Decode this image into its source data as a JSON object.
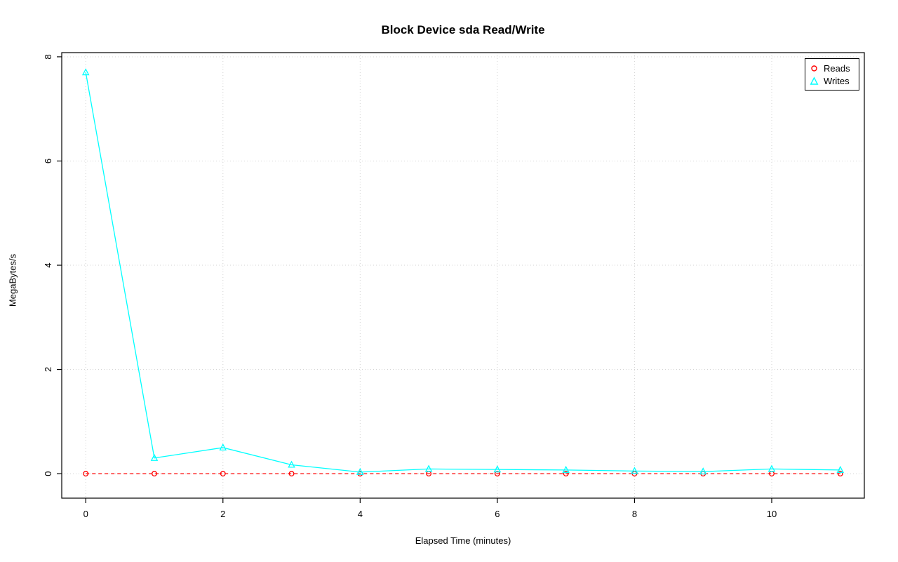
{
  "chart_data": {
    "type": "line",
    "title": "Block Device sda Read/Write",
    "xlabel": "Elapsed Time (minutes)",
    "ylabel": "MegaBytes/s",
    "x": [
      0,
      1,
      2,
      3,
      4,
      5,
      6,
      7,
      8,
      9,
      10,
      11
    ],
    "series": [
      {
        "name": "Reads",
        "color": "#ff0000",
        "marker": "circle",
        "line": "dashed",
        "values": [
          0,
          0,
          0,
          0,
          0,
          0,
          0,
          0,
          0,
          0,
          0,
          0
        ]
      },
      {
        "name": "Writes",
        "color": "#00ffff",
        "marker": "triangle",
        "line": "solid",
        "values": [
          7.7,
          0.3,
          0.5,
          0.17,
          0.03,
          0.09,
          0.08,
          0.07,
          0.05,
          0.04,
          0.09,
          0.07
        ]
      }
    ],
    "xticks": [
      0,
      2,
      4,
      6,
      8,
      10
    ],
    "yticks": [
      0,
      2,
      4,
      6,
      8
    ],
    "xlim": [
      -0.35,
      11.35
    ],
    "ylim": [
      -0.47,
      8.08
    ],
    "grid": true,
    "grid_color": "#d3d3d3",
    "axis_color": "#000000",
    "legend_position": "top-right"
  }
}
